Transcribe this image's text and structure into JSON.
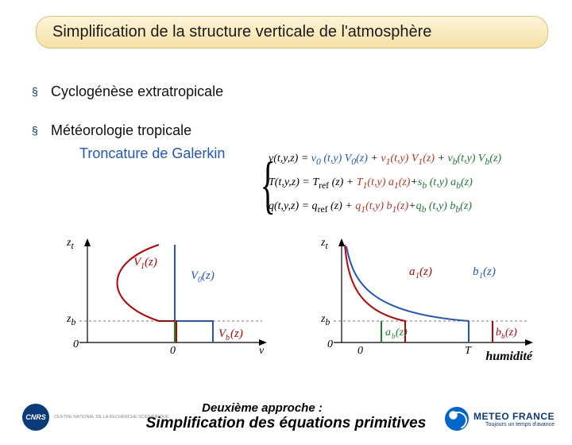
{
  "title": "Simplification de la structure verticale de l'atmosphère",
  "bullets": {
    "b1": "Cyclogénèse extratropicale",
    "b2": "Météorologie tropicale",
    "sub": "Troncature de Galerkin"
  },
  "equations": {
    "line1_html": "<span class='lab-black'>v(t,y,z) = </span><span class='blue'>v<sub>0</sub> (t,y) V<sub>0</sub>(z)</span> + <span class='red'>v<sub>1</sub>(t,y) V<sub>1</sub>(z)</span> + <span class='green'>v<sub>b</sub>(t,y) V<sub>b</sub>(z)</span>",
    "line2_html": "<span class='lab-black'>T(t,y,z) = T<sub class='rm'>ref</sub> (z)</span> + <span class='red'>T<sub>1</sub>(t,y) a<sub>1</sub>(z)</span>+<span class='green'>s<sub>b</sub> (t,y) a<sub>b</sub>(z)</span>",
    "line3_html": "<span class='lab-black'>q(t,y,z) = q<sub class='rm'>ref</sub> (z)</span> + <span class='red'>q<sub>1</sub>(t,y) b<sub>1</sub>(z)</span>+<span class='green'>q<sub>b</sub> (t,y) b<sub>b</sub>(z)</span>"
  },
  "diagrams": {
    "left": {
      "y_axis": {
        "top_label": "z<sub>t</sub>",
        "mid_label": "z<sub>b</sub>",
        "zero_label": "0"
      },
      "x_axis": {
        "right_label": "v",
        "zero_label": "0"
      },
      "curves": {
        "v1": {
          "color": "#c00000",
          "label": "V<sub>1</sub>(z)",
          "type": "monotone-right-bulge"
        },
        "v0": {
          "color": "#1f55c4",
          "label": "V<sub>0</sub>(z)",
          "type": "step-up"
        },
        "vb": {
          "color": "#108a28",
          "label": "V<sub>b</sub>(z)",
          "type": "low-step"
        }
      },
      "grid_color": "#888888",
      "dashed_color": "#777777"
    },
    "right": {
      "y_axis": {
        "top_label": "z<sub>t</sub>",
        "mid_label": "z<sub>b</sub>",
        "zero_label": "0"
      },
      "x_axis": {
        "right_label": "T",
        "zero_label": "0"
      },
      "curves": {
        "a1": {
          "color": "#c00000",
          "label": "a<sub>1</sub>(z)"
        },
        "b1": {
          "color": "#1f55c4",
          "label": "b<sub>1</sub>(z)"
        },
        "ab": {
          "color": "#108a28",
          "label": "a<sub>b</sub>(z)"
        },
        "bb": {
          "color": "#c00000",
          "label": "b<sub>b</sub>(z)"
        }
      },
      "humidity_label": "humidité"
    },
    "axis_style": {
      "stroke": "#000000",
      "width": 1.2,
      "arrow": true
    },
    "font_family": "Times New Roman",
    "font_size_pt": 12
  },
  "footer": {
    "line1": "Deuxième approche :",
    "line2": "Simplification des équations primitives"
  },
  "logos": {
    "cnrs": {
      "badge": "CNRS",
      "caption": "CENTRE NATIONAL\nDE LA RECHERCHE\nSCIENTIFIQUE"
    },
    "meteo": {
      "line1": "METEO FRANCE",
      "line2": "Toujours un temps d'avance"
    }
  },
  "colors": {
    "title_bg_top": "#fdf3d9",
    "title_bg_bottom": "#f6e2a6",
    "title_border": "#d6c47a",
    "bullet_mark": "#003a78",
    "subtext": "#1f55c4",
    "blue": "#1f55c4",
    "red": "#c4301f",
    "green": "#1a7a2e",
    "cnrs_bg": "#0b3a7a",
    "mf_blue": "#0066cc"
  }
}
